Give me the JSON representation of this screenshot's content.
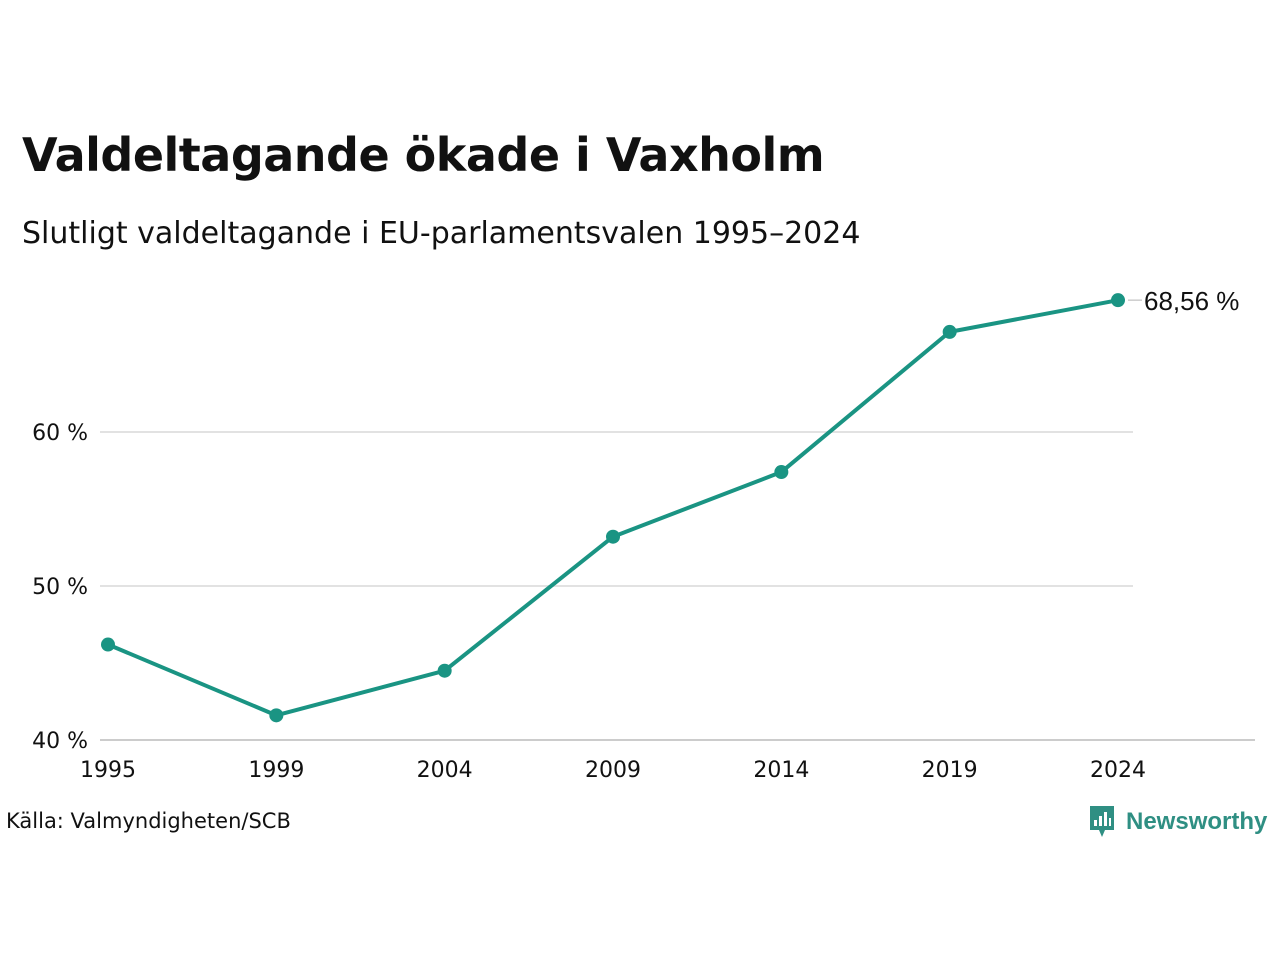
{
  "header": {
    "title": "Valdeltagande ökade i Vaxholm",
    "subtitle": "Slutligt valdeltagande i EU-parlamentsvalen 1995–2024"
  },
  "footer": {
    "source": "Källa: Valmyndigheten/SCB",
    "brand": "Newsworthy"
  },
  "colors": {
    "line": "#1a9483",
    "grid": "#e2e2e2",
    "axis": "#cccccc",
    "brand": "#2f8f83"
  },
  "icons": {
    "brand_logo": "newsworthy-logo-icon"
  },
  "chart_data": {
    "type": "line",
    "title": "Valdeltagande ökade i Vaxholm",
    "subtitle": "Slutligt valdeltagande i EU-parlamentsvalen 1995–2024",
    "xlabel": "",
    "ylabel": "",
    "categories": [
      "1995",
      "1999",
      "2004",
      "2009",
      "2014",
      "2019",
      "2024"
    ],
    "series": [
      {
        "values": [
          46.2,
          41.6,
          44.5,
          53.2,
          57.4,
          66.5,
          68.56
        ]
      }
    ],
    "yticks": [
      40,
      50,
      60
    ],
    "ytick_labels": [
      "40 %",
      "50 %",
      "60 %"
    ],
    "ylim": [
      40,
      70
    ],
    "grid": true,
    "last_value_label": "68,56 %",
    "legend": "none"
  }
}
